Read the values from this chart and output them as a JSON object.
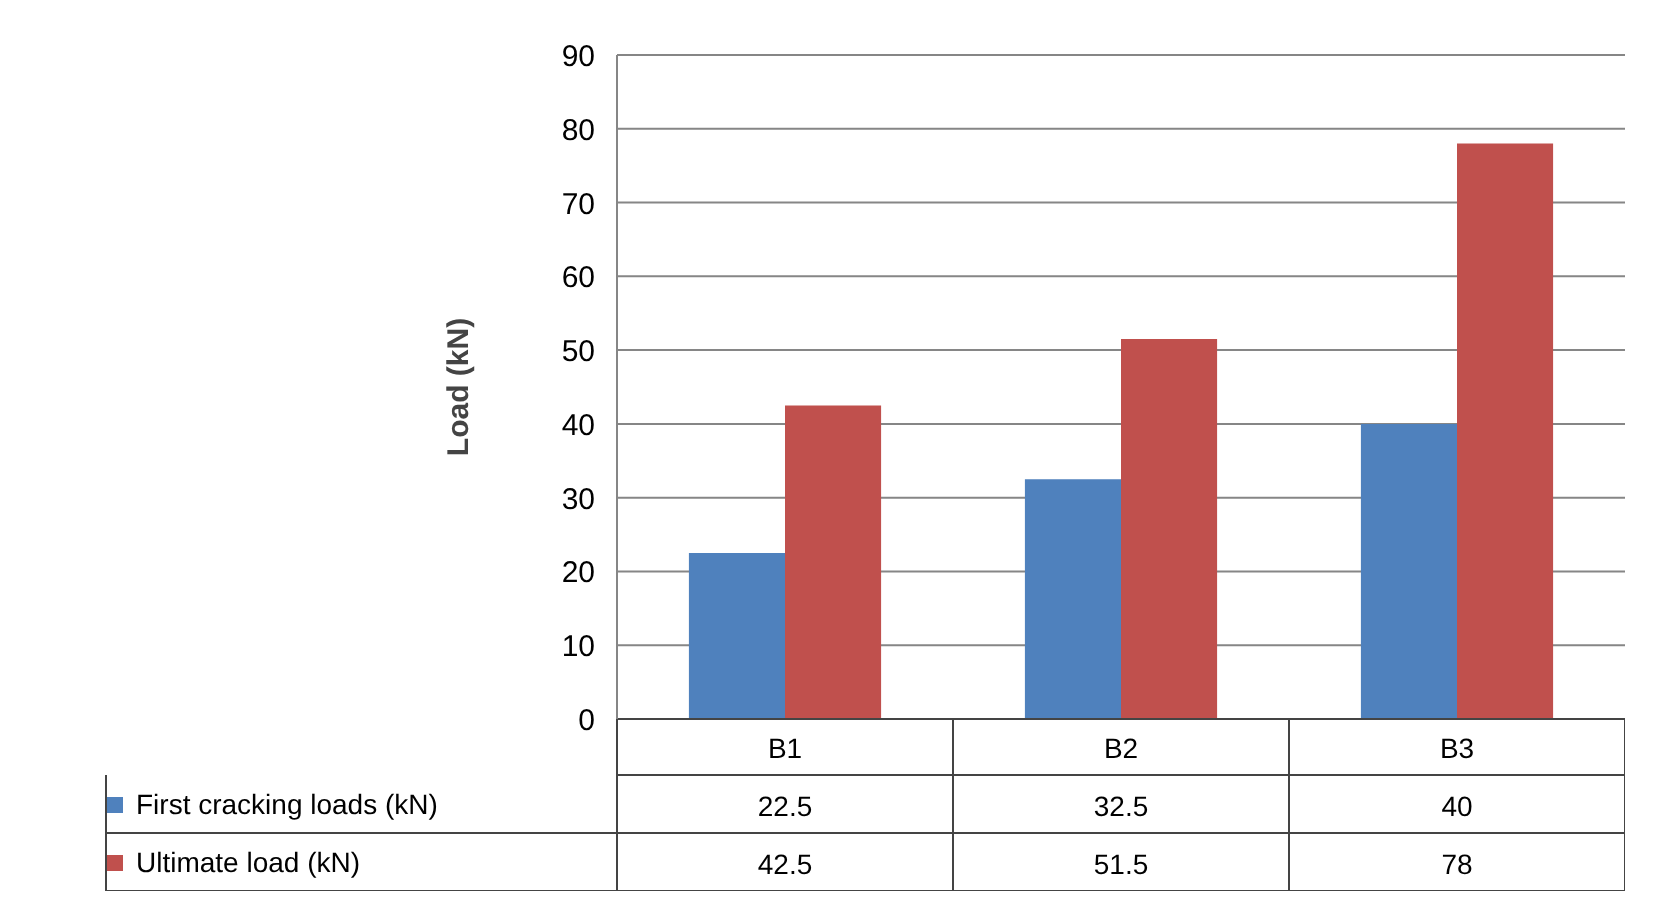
{
  "chart_data": {
    "type": "bar",
    "ylabel": "Load (kN)",
    "categories": [
      "B1",
      "B2",
      "B3"
    ],
    "series": [
      {
        "name": "First cracking loads (kN)",
        "color": "#4f81bd",
        "values": [
          22.5,
          32.5,
          40
        ]
      },
      {
        "name": "Ultimate load (kN)",
        "color": "#c0504d",
        "values": [
          42.5,
          51.5,
          78
        ]
      }
    ],
    "ylim": [
      0,
      90
    ],
    "yticks": [
      0,
      10,
      20,
      30,
      40,
      50,
      60,
      70,
      80,
      90
    ],
    "grid": "y",
    "data_labels": true,
    "legend": "bottom left"
  }
}
